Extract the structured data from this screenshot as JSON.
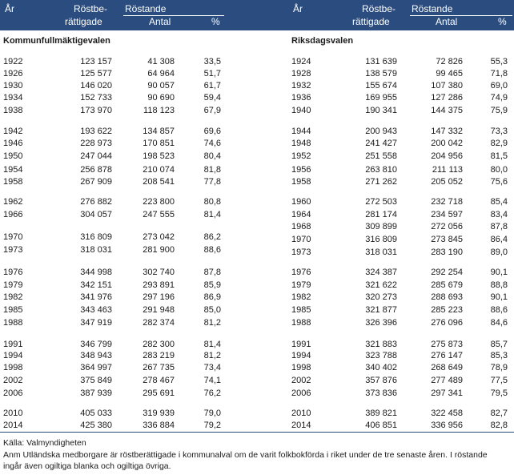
{
  "header": {
    "left": {
      "year": "År",
      "eligible_1": "Röstbe-",
      "eligible_2": "rättigade",
      "voting": "Röstande",
      "count": "Antal",
      "percent": "%"
    },
    "right": {
      "year": "År",
      "eligible_1": "Röstbe-",
      "eligible_2": "rättigade",
      "voting": "Röstande",
      "count": "Antal",
      "percent": "%"
    }
  },
  "left_title": "Kommunfullmäktigevalen",
  "right_title": "Riksdagsvalen",
  "left_rows": [
    [
      "1922",
      "123 157",
      "41 308",
      "33,5"
    ],
    [
      "1926",
      "125 577",
      "64 964",
      "51,7"
    ],
    [
      "1930",
      "146 020",
      "90 057",
      "61,7"
    ],
    [
      "1934",
      "152 733",
      "90 690",
      "59,4"
    ],
    [
      "1938",
      "173 970",
      "118 123",
      "67,9"
    ],
    [
      "1942",
      "193 622",
      "134 857",
      "69,6"
    ],
    [
      "1946",
      "228 973",
      "170 851",
      "74,6"
    ],
    [
      "1950",
      "247 044",
      "198 523",
      "80,4"
    ],
    [
      "1954",
      "256 878",
      "210 074",
      "81,8"
    ],
    [
      "1958",
      "267 909",
      "208 541",
      "77,8"
    ],
    [
      "1962",
      "276 882",
      "223 800",
      "80,8"
    ],
    [
      "1966",
      "304 057",
      "247 555",
      "81,4"
    ],
    [
      "1970",
      "316 809",
      "273 042",
      "86,2"
    ],
    [
      "1973",
      "318 031",
      "281 900",
      "88,6"
    ],
    [
      "1976",
      "344 998",
      "302 740",
      "87,8"
    ],
    [
      "1979",
      "342 151",
      "293 891",
      "85,9"
    ],
    [
      "1982",
      "341 976",
      "297 196",
      "86,9"
    ],
    [
      "1985",
      "343 463",
      "291 948",
      "85,0"
    ],
    [
      "1988",
      "347 919",
      "282 374",
      "81,2"
    ],
    [
      "1991",
      "346 799",
      "282 300",
      "81,4"
    ],
    [
      "1994",
      "348 943",
      "283 219",
      "81,2"
    ],
    [
      "1998",
      "364 997",
      "267 735",
      "73,4"
    ],
    [
      "2002",
      "375 849",
      "278 467",
      "74,1"
    ],
    [
      "2006",
      "387 939",
      "295 691",
      "76,2"
    ],
    [
      "2010",
      "405 033",
      "319 939",
      "79,0"
    ],
    [
      "2014",
      "425 380",
      "336 884",
      "79,2"
    ]
  ],
  "right_rows": [
    [
      "1924",
      "131 639",
      "72 826",
      "55,3"
    ],
    [
      "1928",
      "138 579",
      "99 465",
      "71,8"
    ],
    [
      "1932",
      "155 674",
      "107 380",
      "69,0"
    ],
    [
      "1936",
      "169 955",
      "127 286",
      "74,9"
    ],
    [
      "1940",
      "190 341",
      "144 375",
      "75,9"
    ],
    [
      "1944",
      "200 943",
      "147 332",
      "73,3"
    ],
    [
      "1948",
      "241 427",
      "200 042",
      "82,9"
    ],
    [
      "1952",
      "251 558",
      "204 956",
      "81,5"
    ],
    [
      "1956",
      "263 810",
      "211 113",
      "80,0"
    ],
    [
      "1958",
      "271 262",
      "205 052",
      "75,6"
    ],
    [
      "1960",
      "272 503",
      "232 718",
      "85,4"
    ],
    [
      "1964",
      "281 174",
      "234 597",
      "83,4"
    ],
    [
      "1968",
      "309 899",
      "272 056",
      "87,8"
    ],
    [
      "1970",
      "316 809",
      "273 845",
      "86,4"
    ],
    [
      "1973",
      "318 031",
      "283 190",
      "89,0"
    ],
    [
      "1976",
      "324 387",
      "292 254",
      "90,1"
    ],
    [
      "1979",
      "321 622",
      "285 679",
      "88,8"
    ],
    [
      "1982",
      "320 273",
      "288 693",
      "90,1"
    ],
    [
      "1985",
      "321 877",
      "285 223",
      "88,6"
    ],
    [
      "1988",
      "326 396",
      "276 096",
      "84,6"
    ],
    [
      "1991",
      "321 883",
      "275 873",
      "85,7"
    ],
    [
      "1994",
      "323 788",
      "276 147",
      "85,3"
    ],
    [
      "1998",
      "340 402",
      "268 649",
      "78,9"
    ],
    [
      "2002",
      "357 876",
      "277 489",
      "77,5"
    ],
    [
      "2006",
      "373 836",
      "297 341",
      "79,5"
    ],
    [
      "2010",
      "389 821",
      "322 458",
      "82,7"
    ],
    [
      "2014",
      "406 851",
      "336 956",
      "82,8"
    ]
  ],
  "footer": {
    "source": "Källa:  Valmyndigheten",
    "note_1": "Anm  Utländska medborgare är röstberättigade i kommunalval om de varit folkbokförda i riket under de tre senaste åren. I röstande",
    "note_2": "ingår även ogiltiga blanka och ogiltiga övriga."
  }
}
